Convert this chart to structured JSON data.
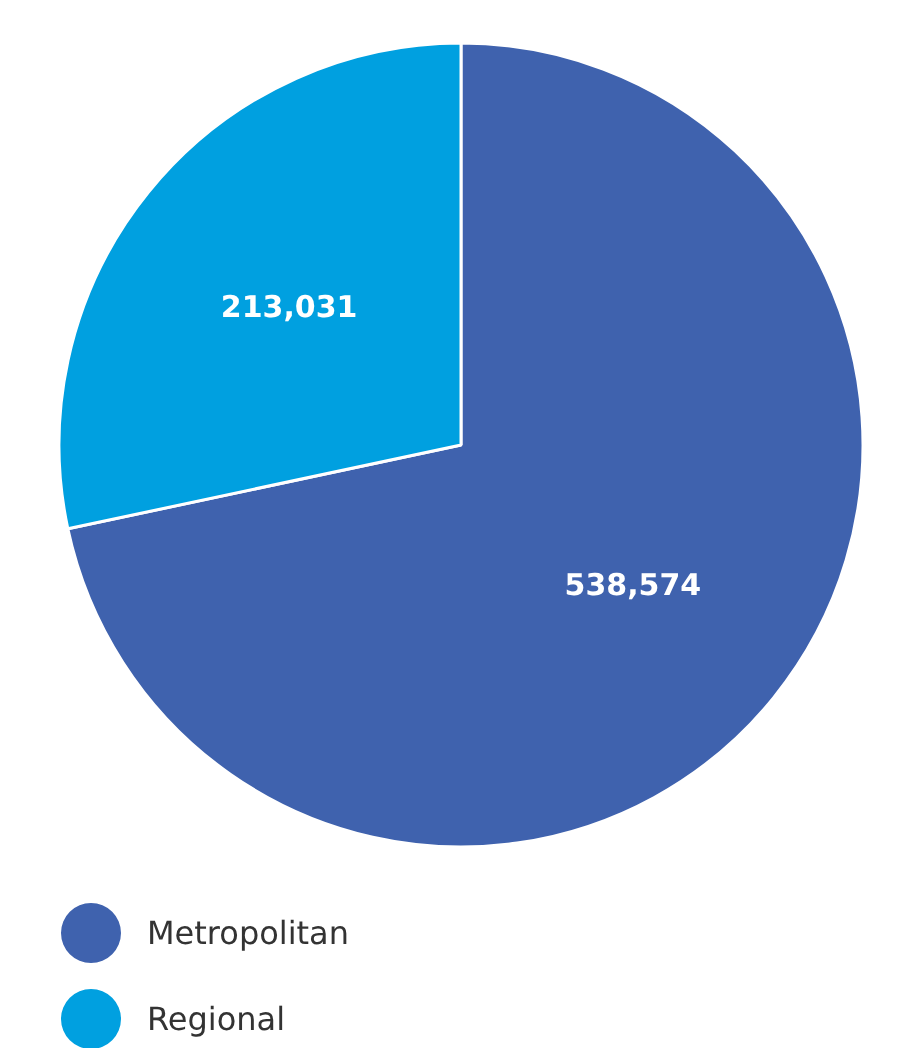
{
  "chart_data": {
    "type": "pie",
    "categories": [
      "Metropolitan",
      "Regional"
    ],
    "values": [
      538574,
      213031
    ],
    "colors": [
      "#3f62ae",
      "#00a0e0"
    ],
    "value_labels": [
      "538,574",
      "213,031"
    ],
    "legend": "bottom left"
  }
}
